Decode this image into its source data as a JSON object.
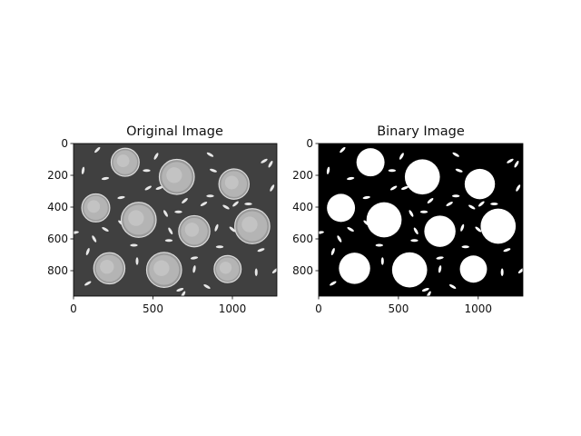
{
  "figure": {
    "background_color": "#ffffff",
    "panels": [
      {
        "title": "Original Image",
        "x_ticks": [
          "0",
          "500",
          "1000"
        ],
        "y_ticks": [
          "0",
          "200",
          "400",
          "600",
          "800"
        ],
        "style": "grayscale",
        "colors": {
          "background": "#3e3e3e",
          "coin": "#b9b9b9",
          "rice": "#e8e8e8"
        }
      },
      {
        "title": "Binary Image",
        "x_ticks": [
          "0",
          "500",
          "1000"
        ],
        "y_ticks": [
          "0",
          "200",
          "400",
          "600",
          "800"
        ],
        "style": "binary",
        "colors": {
          "background": "#000000",
          "coin": "#ffffff",
          "rice": "#ffffff"
        }
      }
    ],
    "image_data": {
      "x_range": [
        0,
        1280
      ],
      "y_range": [
        960,
        0
      ],
      "coins": [
        {
          "x": 325,
          "y": 118,
          "r": 88
        },
        {
          "x": 650,
          "y": 210,
          "r": 110
        },
        {
          "x": 1010,
          "y": 255,
          "r": 95
        },
        {
          "x": 140,
          "y": 405,
          "r": 88
        },
        {
          "x": 410,
          "y": 480,
          "r": 110
        },
        {
          "x": 760,
          "y": 552,
          "r": 98
        },
        {
          "x": 1125,
          "y": 520,
          "r": 110
        },
        {
          "x": 225,
          "y": 785,
          "r": 98
        },
        {
          "x": 570,
          "y": 795,
          "r": 110
        },
        {
          "x": 970,
          "y": 790,
          "r": 85
        }
      ],
      "rice": [
        {
          "x": 150,
          "y": 40,
          "a": 45
        },
        {
          "x": 520,
          "y": 80,
          "a": 60
        },
        {
          "x": 860,
          "y": 70,
          "a": -30
        },
        {
          "x": 1200,
          "y": 110,
          "a": 30
        },
        {
          "x": 1240,
          "y": 130,
          "a": 60
        },
        {
          "x": 60,
          "y": 170,
          "a": 80
        },
        {
          "x": 1250,
          "y": 280,
          "a": 60
        },
        {
          "x": 200,
          "y": 220,
          "a": 10
        },
        {
          "x": 460,
          "y": 170,
          "a": 0
        },
        {
          "x": 880,
          "y": 170,
          "a": -20
        },
        {
          "x": 470,
          "y": 280,
          "a": 30
        },
        {
          "x": 540,
          "y": 280,
          "a": 20
        },
        {
          "x": 300,
          "y": 340,
          "a": 10
        },
        {
          "x": 860,
          "y": 330,
          "a": 0
        },
        {
          "x": 700,
          "y": 360,
          "a": 40
        },
        {
          "x": 820,
          "y": 380,
          "a": 30
        },
        {
          "x": 960,
          "y": 400,
          "a": -30
        },
        {
          "x": 1020,
          "y": 380,
          "a": 40
        },
        {
          "x": 1100,
          "y": 380,
          "a": 0
        },
        {
          "x": 580,
          "y": 440,
          "a": -60
        },
        {
          "x": 660,
          "y": 430,
          "a": 0
        },
        {
          "x": 300,
          "y": 500,
          "a": -40
        },
        {
          "x": 200,
          "y": 540,
          "a": -30
        },
        {
          "x": 610,
          "y": 550,
          "a": -60
        },
        {
          "x": 900,
          "y": 530,
          "a": 70
        },
        {
          "x": 1000,
          "y": 540,
          "a": -40
        },
        {
          "x": 10,
          "y": 560,
          "a": 10
        },
        {
          "x": 130,
          "y": 600,
          "a": -60
        },
        {
          "x": 380,
          "y": 640,
          "a": 0
        },
        {
          "x": 600,
          "y": 610,
          "a": 0
        },
        {
          "x": 920,
          "y": 650,
          "a": 0
        },
        {
          "x": 1180,
          "y": 670,
          "a": 20
        },
        {
          "x": 90,
          "y": 680,
          "a": 70
        },
        {
          "x": 400,
          "y": 740,
          "a": 90
        },
        {
          "x": 760,
          "y": 720,
          "a": 10
        },
        {
          "x": 760,
          "y": 790,
          "a": 80
        },
        {
          "x": 1150,
          "y": 810,
          "a": 90
        },
        {
          "x": 1270,
          "y": 800,
          "a": 40
        },
        {
          "x": 90,
          "y": 880,
          "a": 30
        },
        {
          "x": 670,
          "y": 920,
          "a": 20
        },
        {
          "x": 840,
          "y": 900,
          "a": -30
        },
        {
          "x": 690,
          "y": 950,
          "a": 60
        }
      ]
    }
  }
}
